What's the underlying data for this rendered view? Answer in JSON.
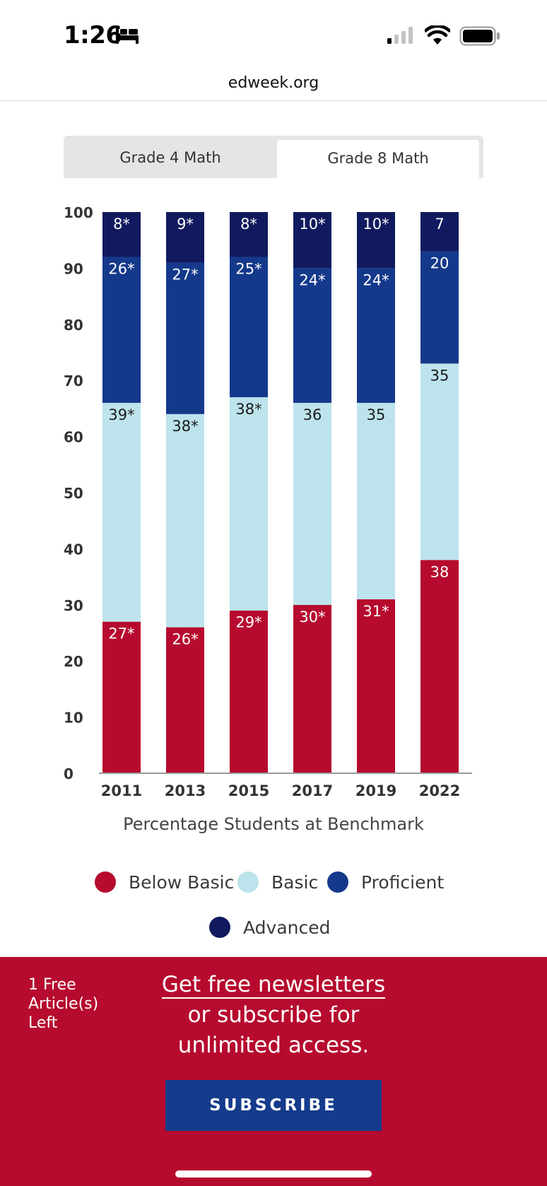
{
  "status_bar": {
    "time": "1:26",
    "icons": [
      "bed-icon",
      "signal-icon",
      "wifi-icon",
      "battery-icon"
    ]
  },
  "browser": {
    "url": "edweek.org"
  },
  "tabs": [
    {
      "label": "Grade 4 Math",
      "selected": false
    },
    {
      "label": "Grade 8 Math",
      "selected": true
    }
  ],
  "colors": {
    "below_basic": "#b60a2e",
    "basic": "#bde3ec",
    "proficient": "#14398b",
    "advanced": "#111a5e"
  },
  "chart_data": {
    "type": "bar",
    "stacked": true,
    "categories": [
      "2011",
      "2013",
      "2015",
      "2017",
      "2019",
      "2022"
    ],
    "series": [
      {
        "name": "Below Basic",
        "key": "below_basic",
        "values": [
          27,
          26,
          29,
          30,
          31,
          38
        ],
        "labels": [
          "27*",
          "26*",
          "29*",
          "30*",
          "31*",
          "38"
        ]
      },
      {
        "name": "Basic",
        "key": "basic",
        "values": [
          39,
          38,
          38,
          36,
          35,
          35
        ],
        "labels": [
          "39*",
          "38*",
          "38*",
          "36",
          "35",
          "35"
        ]
      },
      {
        "name": "Proficient",
        "key": "proficient",
        "values": [
          26,
          27,
          25,
          24,
          24,
          20
        ],
        "labels": [
          "26*",
          "27*",
          "25*",
          "24*",
          "24*",
          "20"
        ]
      },
      {
        "name": "Advanced",
        "key": "advanced",
        "values": [
          8,
          9,
          8,
          10,
          10,
          7
        ],
        "labels": [
          "8*",
          "9*",
          "8*",
          "10*",
          "10*",
          "7"
        ]
      }
    ],
    "ylim": [
      0,
      100
    ],
    "yticks": [
      0,
      10,
      20,
      30,
      40,
      50,
      60,
      70,
      80,
      90,
      100
    ],
    "xlabel": "Percentage Students at Benchmark",
    "legend": [
      "Below Basic",
      "Basic",
      "Proficient",
      "Advanced"
    ],
    "legend_position": "bottom"
  },
  "paywall": {
    "free_articles": "1 Free Article(s) Left",
    "newsletter_link": "Get free newsletters",
    "promo_line_1": "or subscribe for",
    "promo_line_2": "unlimited access.",
    "subscribe_label": "SUBSCRIBE"
  }
}
